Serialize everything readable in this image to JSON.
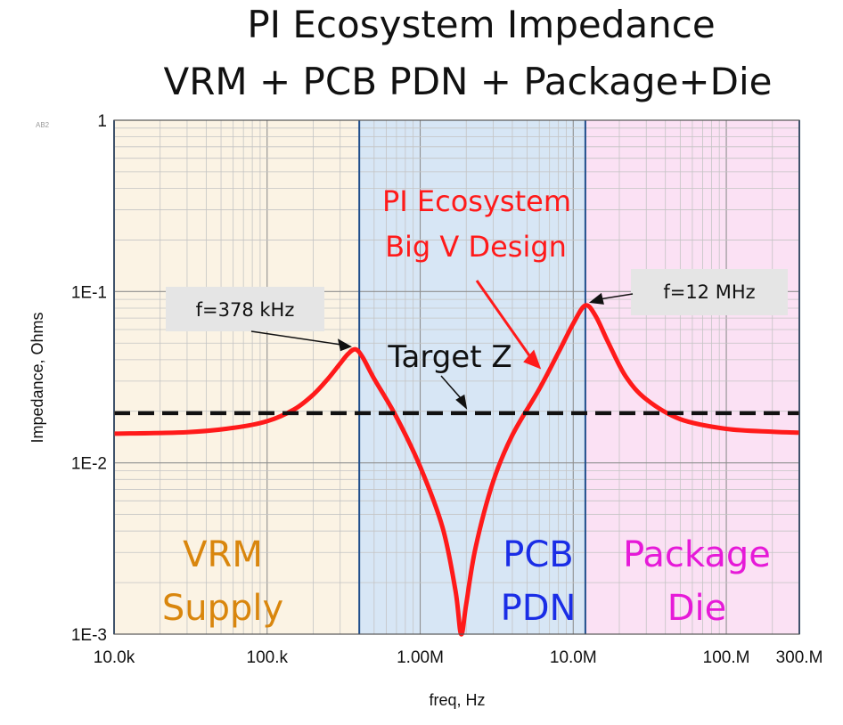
{
  "chart_data": {
    "type": "line",
    "title": "PI Ecosystem Impedance",
    "subtitle": "VRM + PCB PDN + Package+Die",
    "xlabel": "freq, Hz",
    "ylabel": "Impedance, Ohms",
    "xscale": "log",
    "yscale": "log",
    "xlim": [
      10000,
      300000000
    ],
    "ylim": [
      0.001,
      1
    ],
    "grid": true,
    "x_ticks": [
      {
        "value": 10000,
        "label": "10.0k"
      },
      {
        "value": 100000,
        "label": "100.k"
      },
      {
        "value": 1000000,
        "label": "1.00M"
      },
      {
        "value": 10000000,
        "label": "10.0M"
      },
      {
        "value": 100000000,
        "label": "100.M"
      },
      {
        "value": 300000000,
        "label": "300.M"
      }
    ],
    "y_ticks": [
      {
        "value": 1,
        "label": "1"
      },
      {
        "value": 0.1,
        "label": "1E-1"
      },
      {
        "value": 0.01,
        "label": "1E-2"
      },
      {
        "value": 0.001,
        "label": "1E-3"
      }
    ],
    "regions": [
      {
        "label_lines": [
          "VRM",
          "Supply"
        ],
        "x_from": 10000,
        "x_to": 400000,
        "fill": "#fbf3e4",
        "text_color": "#d9860d"
      },
      {
        "label_lines": [
          "PCB",
          "PDN"
        ],
        "x_from": 400000,
        "x_to": 12000000,
        "fill": "#d7e6f5",
        "text_color": "#1a2de6"
      },
      {
        "label_lines": [
          "Package",
          "Die"
        ],
        "x_from": 12000000,
        "x_to": 300000000,
        "fill": "#fbe1f4",
        "text_color": "#e61ad8"
      }
    ],
    "series": [
      {
        "color": "#ff1a1a",
        "style": "solid",
        "x": [
          10000,
          30000,
          60000,
          100000,
          150000,
          200000,
          250000,
          300000,
          340000,
          378000,
          420000,
          500000,
          700000,
          1000000,
          1400000,
          1700000,
          1850000,
          2000000,
          2300000,
          3000000,
          4000000,
          6000000,
          8000000,
          10000000,
          12000000,
          14000000,
          17000000,
          22000000,
          30000000,
          50000000,
          100000000,
          200000000,
          300000000
        ],
        "y": [
          0.0148,
          0.0151,
          0.016,
          0.0175,
          0.0205,
          0.025,
          0.031,
          0.038,
          0.0435,
          0.046,
          0.0415,
          0.031,
          0.0185,
          0.0095,
          0.0042,
          0.0018,
          0.001,
          0.0015,
          0.0032,
          0.0078,
          0.0145,
          0.027,
          0.044,
          0.065,
          0.083,
          0.072,
          0.05,
          0.032,
          0.0235,
          0.018,
          0.0158,
          0.0152,
          0.015
        ]
      },
      {
        "color": "#111111",
        "style": "dashed",
        "x": [
          10000,
          300000000
        ],
        "y": [
          0.0195,
          0.0195
        ]
      }
    ],
    "annotations": [
      {
        "text": "f=378 kHz",
        "points_to": [
          378000,
          0.046
        ]
      },
      {
        "text": "f=12 MHz",
        "points_to": [
          12000000,
          0.083
        ]
      },
      {
        "text": "Target Z",
        "points_to": [
          2000000,
          0.0195
        ]
      },
      {
        "text_lines": [
          "PI Ecosystem",
          "Big V Design"
        ],
        "points_to": [
          6000000,
          0.032
        ]
      }
    ],
    "corner_mark": "AB2"
  }
}
